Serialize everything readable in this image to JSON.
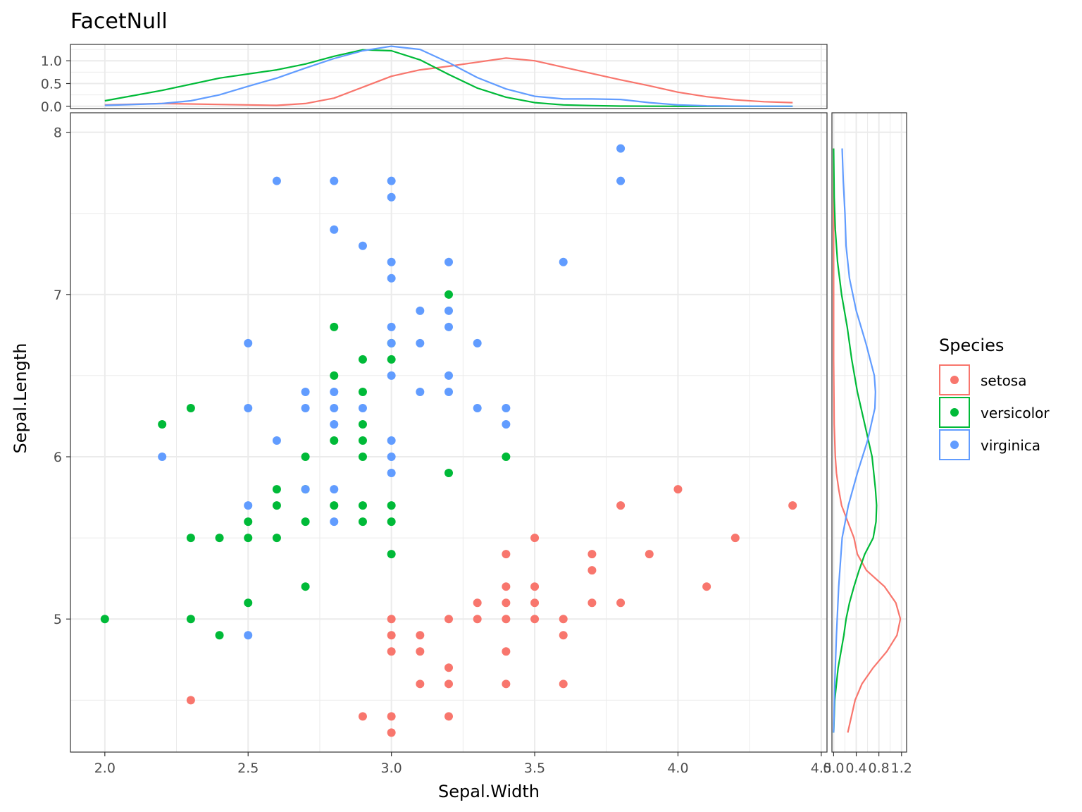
{
  "chart_data": {
    "type": "scatter",
    "title": "FacetNull",
    "xlabel": "Sepal.Width",
    "ylabel": "Sepal.Length",
    "xlim": [
      1.88,
      4.52
    ],
    "ylim": [
      4.18,
      8.12
    ],
    "x_ticks": [
      "2.0",
      "2.5",
      "3.0",
      "3.5",
      "4.0",
      "4.5"
    ],
    "y_ticks": [
      "5",
      "6",
      "7",
      "8"
    ],
    "grid": true,
    "legend": {
      "title": "Species",
      "placement": "right"
    },
    "series": [
      {
        "name": "setosa",
        "color": "#F8766D",
        "points": [
          [
            2.3,
            4.5
          ],
          [
            2.9,
            4.4
          ],
          [
            3.0,
            4.4
          ],
          [
            3.2,
            4.4
          ],
          [
            3.0,
            4.3
          ],
          [
            3.1,
            4.6
          ],
          [
            3.2,
            4.6
          ],
          [
            3.4,
            4.6
          ],
          [
            3.6,
            4.6
          ],
          [
            3.2,
            4.7
          ],
          [
            3.0,
            4.8
          ],
          [
            3.1,
            4.8
          ],
          [
            3.4,
            4.8
          ],
          [
            3.0,
            4.9
          ],
          [
            3.1,
            4.9
          ],
          [
            3.6,
            4.9
          ],
          [
            3.0,
            5.0
          ],
          [
            3.2,
            5.0
          ],
          [
            3.3,
            5.0
          ],
          [
            3.4,
            5.0
          ],
          [
            3.5,
            5.0
          ],
          [
            3.6,
            5.0
          ],
          [
            3.3,
            5.1
          ],
          [
            3.4,
            5.1
          ],
          [
            3.5,
            5.1
          ],
          [
            3.7,
            5.1
          ],
          [
            3.8,
            5.1
          ],
          [
            3.4,
            5.2
          ],
          [
            3.5,
            5.2
          ],
          [
            4.1,
            5.2
          ],
          [
            3.7,
            5.3
          ],
          [
            3.4,
            5.4
          ],
          [
            3.7,
            5.4
          ],
          [
            3.9,
            5.4
          ],
          [
            3.5,
            5.5
          ],
          [
            4.2,
            5.5
          ],
          [
            3.8,
            5.7
          ],
          [
            4.4,
            5.7
          ],
          [
            4.0,
            5.8
          ]
        ]
      },
      {
        "name": "versicolor",
        "color": "#00BA38",
        "points": [
          [
            2.0,
            5.0
          ],
          [
            2.3,
            5.0
          ],
          [
            2.4,
            4.9
          ],
          [
            2.5,
            5.1
          ],
          [
            2.7,
            5.2
          ],
          [
            3.0,
            5.4
          ],
          [
            2.3,
            5.5
          ],
          [
            2.4,
            5.5
          ],
          [
            2.5,
            5.5
          ],
          [
            2.6,
            5.5
          ],
          [
            2.5,
            5.6
          ],
          [
            2.7,
            5.6
          ],
          [
            2.9,
            5.6
          ],
          [
            3.0,
            5.6
          ],
          [
            2.6,
            5.7
          ],
          [
            2.8,
            5.7
          ],
          [
            2.9,
            5.7
          ],
          [
            3.0,
            5.7
          ],
          [
            2.6,
            5.8
          ],
          [
            2.7,
            5.8
          ],
          [
            3.2,
            5.9
          ],
          [
            2.7,
            6.0
          ],
          [
            2.9,
            6.0
          ],
          [
            3.4,
            6.0
          ],
          [
            2.8,
            6.1
          ],
          [
            2.9,
            6.1
          ],
          [
            2.2,
            6.2
          ],
          [
            2.9,
            6.2
          ],
          [
            2.3,
            6.3
          ],
          [
            2.9,
            6.4
          ],
          [
            2.8,
            6.5
          ],
          [
            2.9,
            6.6
          ],
          [
            3.0,
            6.6
          ],
          [
            3.0,
            6.7
          ],
          [
            2.8,
            6.8
          ],
          [
            3.2,
            7.0
          ]
        ]
      },
      {
        "name": "virginica",
        "color": "#619CFF",
        "points": [
          [
            2.5,
            4.9
          ],
          [
            2.5,
            5.7
          ],
          [
            2.8,
            5.6
          ],
          [
            2.7,
            5.8
          ],
          [
            2.8,
            5.8
          ],
          [
            3.0,
            5.9
          ],
          [
            2.2,
            6.0
          ],
          [
            3.0,
            6.0
          ],
          [
            2.6,
            6.1
          ],
          [
            3.0,
            6.1
          ],
          [
            2.8,
            6.2
          ],
          [
            3.4,
            6.2
          ],
          [
            2.5,
            6.3
          ],
          [
            2.7,
            6.3
          ],
          [
            2.8,
            6.3
          ],
          [
            2.9,
            6.3
          ],
          [
            3.3,
            6.3
          ],
          [
            3.4,
            6.3
          ],
          [
            2.7,
            6.4
          ],
          [
            2.8,
            6.4
          ],
          [
            3.1,
            6.4
          ],
          [
            3.2,
            6.4
          ],
          [
            3.0,
            6.5
          ],
          [
            3.2,
            6.5
          ],
          [
            2.5,
            6.7
          ],
          [
            3.0,
            6.7
          ],
          [
            3.1,
            6.7
          ],
          [
            3.3,
            6.7
          ],
          [
            3.0,
            6.8
          ],
          [
            3.2,
            6.8
          ],
          [
            3.1,
            6.9
          ],
          [
            3.2,
            6.9
          ],
          [
            3.0,
            7.1
          ],
          [
            3.0,
            7.2
          ],
          [
            3.2,
            7.2
          ],
          [
            3.6,
            7.2
          ],
          [
            2.9,
            7.3
          ],
          [
            2.8,
            7.4
          ],
          [
            3.0,
            7.6
          ],
          [
            2.6,
            7.7
          ],
          [
            2.8,
            7.7
          ],
          [
            3.0,
            7.7
          ],
          [
            3.8,
            7.7
          ],
          [
            3.8,
            7.9
          ]
        ]
      }
    ],
    "top_density": {
      "xlim": [
        1.88,
        4.52
      ],
      "ylim": [
        -0.05,
        1.36
      ],
      "y_ticks": [
        "0.0",
        "0.5",
        "1.0"
      ],
      "curves": [
        {
          "name": "setosa",
          "color": "#F8766D",
          "x": [
            2.0,
            2.2,
            2.4,
            2.6,
            2.7,
            2.8,
            2.9,
            3.0,
            3.1,
            3.2,
            3.3,
            3.4,
            3.5,
            3.6,
            3.7,
            3.8,
            3.9,
            4.0,
            4.1,
            4.2,
            4.3,
            4.4
          ],
          "y": [
            0.03,
            0.06,
            0.04,
            0.02,
            0.06,
            0.18,
            0.42,
            0.66,
            0.8,
            0.88,
            0.97,
            1.06,
            1.0,
            0.86,
            0.72,
            0.58,
            0.45,
            0.31,
            0.21,
            0.14,
            0.1,
            0.08
          ]
        },
        {
          "name": "versicolor",
          "color": "#00BA38",
          "x": [
            2.0,
            2.2,
            2.4,
            2.6,
            2.7,
            2.8,
            2.9,
            3.0,
            3.1,
            3.2,
            3.3,
            3.4,
            3.5,
            3.6,
            3.7,
            3.8,
            4.0,
            4.2,
            4.4
          ],
          "y": [
            0.12,
            0.35,
            0.62,
            0.8,
            0.93,
            1.1,
            1.24,
            1.22,
            1.02,
            0.7,
            0.4,
            0.2,
            0.08,
            0.03,
            0.015,
            0.005,
            0.0,
            0.0,
            0.0
          ]
        },
        {
          "name": "virginica",
          "color": "#619CFF",
          "x": [
            2.0,
            2.2,
            2.3,
            2.4,
            2.5,
            2.6,
            2.7,
            2.8,
            2.9,
            3.0,
            3.1,
            3.2,
            3.3,
            3.4,
            3.5,
            3.6,
            3.7,
            3.8,
            3.9,
            4.0,
            4.1,
            4.2,
            4.4
          ],
          "y": [
            0.02,
            0.06,
            0.12,
            0.25,
            0.44,
            0.62,
            0.84,
            1.05,
            1.22,
            1.32,
            1.25,
            0.96,
            0.63,
            0.38,
            0.22,
            0.16,
            0.16,
            0.15,
            0.08,
            0.03,
            0.01,
            0.005,
            0.0
          ]
        }
      ]
    },
    "right_density": {
      "xlim": [
        -0.03,
        1.29
      ],
      "x_ticks": [
        "0.0",
        "0.4",
        "0.8",
        "1.2"
      ],
      "curves": [
        {
          "name": "setosa",
          "color": "#F8766D",
          "y": [
            4.3,
            4.5,
            4.6,
            4.7,
            4.8,
            4.9,
            5.0,
            5.1,
            5.2,
            5.3,
            5.4,
            5.5,
            5.6,
            5.7,
            5.8,
            5.9,
            6.0,
            6.2,
            6.4,
            6.6,
            6.8,
            7.0,
            7.2,
            7.4,
            7.6,
            7.9
          ],
          "x": [
            0.25,
            0.38,
            0.5,
            0.7,
            0.94,
            1.12,
            1.18,
            1.1,
            0.9,
            0.58,
            0.42,
            0.36,
            0.25,
            0.14,
            0.09,
            0.05,
            0.03,
            0.01,
            0.005,
            0.0,
            0.0,
            0.0,
            0.0,
            0.0,
            0.0,
            0.0
          ]
        },
        {
          "name": "versicolor",
          "color": "#00BA38",
          "y": [
            4.3,
            4.5,
            4.7,
            4.9,
            5.0,
            5.1,
            5.2,
            5.3,
            5.4,
            5.5,
            5.6,
            5.7,
            5.8,
            6.0,
            6.2,
            6.4,
            6.6,
            6.8,
            7.0,
            7.2,
            7.4,
            7.6,
            7.9
          ],
          "x": [
            0.0,
            0.02,
            0.08,
            0.18,
            0.22,
            0.28,
            0.36,
            0.45,
            0.55,
            0.7,
            0.75,
            0.76,
            0.74,
            0.68,
            0.55,
            0.42,
            0.32,
            0.24,
            0.14,
            0.07,
            0.03,
            0.01,
            0.0
          ]
        },
        {
          "name": "virginica",
          "color": "#619CFF",
          "y": [
            4.3,
            4.6,
            4.9,
            5.2,
            5.5,
            5.7,
            5.9,
            6.1,
            6.3,
            6.4,
            6.5,
            6.7,
            6.9,
            7.1,
            7.3,
            7.5,
            7.7,
            7.9
          ],
          "x": [
            0.0,
            0.02,
            0.05,
            0.09,
            0.15,
            0.26,
            0.42,
            0.6,
            0.73,
            0.74,
            0.72,
            0.57,
            0.4,
            0.28,
            0.22,
            0.2,
            0.17,
            0.15
          ]
        }
      ]
    }
  }
}
